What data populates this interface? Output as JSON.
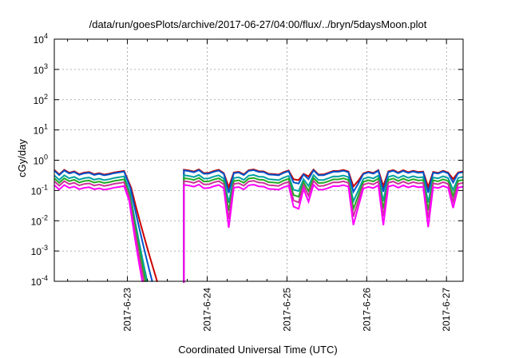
{
  "chart_data": {
    "type": "line",
    "title": "/data/run/goesPlots/archive/2017-06-27/04:00/flux/../bryn/5daysMoon.plot",
    "xlabel": "Coordinated Universal Time (UTC)",
    "ylabel": "cGy/day",
    "yscale": "log",
    "ylim": [
      0.0001,
      10000
    ],
    "xlim": [
      "2017-06-22T02:00",
      "2017-06-27T05:00"
    ],
    "y_ticks": [
      {
        "base": "10",
        "exp": "-4"
      },
      {
        "base": "10",
        "exp": "-3"
      },
      {
        "base": "10",
        "exp": "-2"
      },
      {
        "base": "10",
        "exp": "-1"
      },
      {
        "base": "10",
        "exp": "0"
      },
      {
        "base": "10",
        "exp": "1"
      },
      {
        "base": "10",
        "exp": "2"
      },
      {
        "base": "10",
        "exp": "3"
      },
      {
        "base": "10",
        "exp": "4"
      }
    ],
    "x_ticks": [
      "2017-6-23",
      "2017-6-24",
      "2017-6-25",
      "2017-6-26",
      "2017-6-27"
    ],
    "grid": "dashed",
    "gap": {
      "drop_start": "2017-06-23T00:00",
      "resume": "2017-06-23T17:00"
    },
    "series": [
      {
        "color": "#cc0000",
        "level": 0.38,
        "drop_end_hour": 9.0
      },
      {
        "color": "#0055cc",
        "level": 0.36,
        "drop_end_hour": 7.5
      },
      {
        "color": "#00a0a0",
        "level": 0.25,
        "drop_end_hour": 6.0
      },
      {
        "color": "#22aa22",
        "level": 0.2,
        "drop_end_hour": 5.5
      },
      {
        "color": "#cc3399",
        "level": 0.16,
        "drop_end_hour": 5.0
      },
      {
        "color": "#ff00ff",
        "level": 0.12,
        "drop_end_hour": 4.5
      }
    ]
  }
}
